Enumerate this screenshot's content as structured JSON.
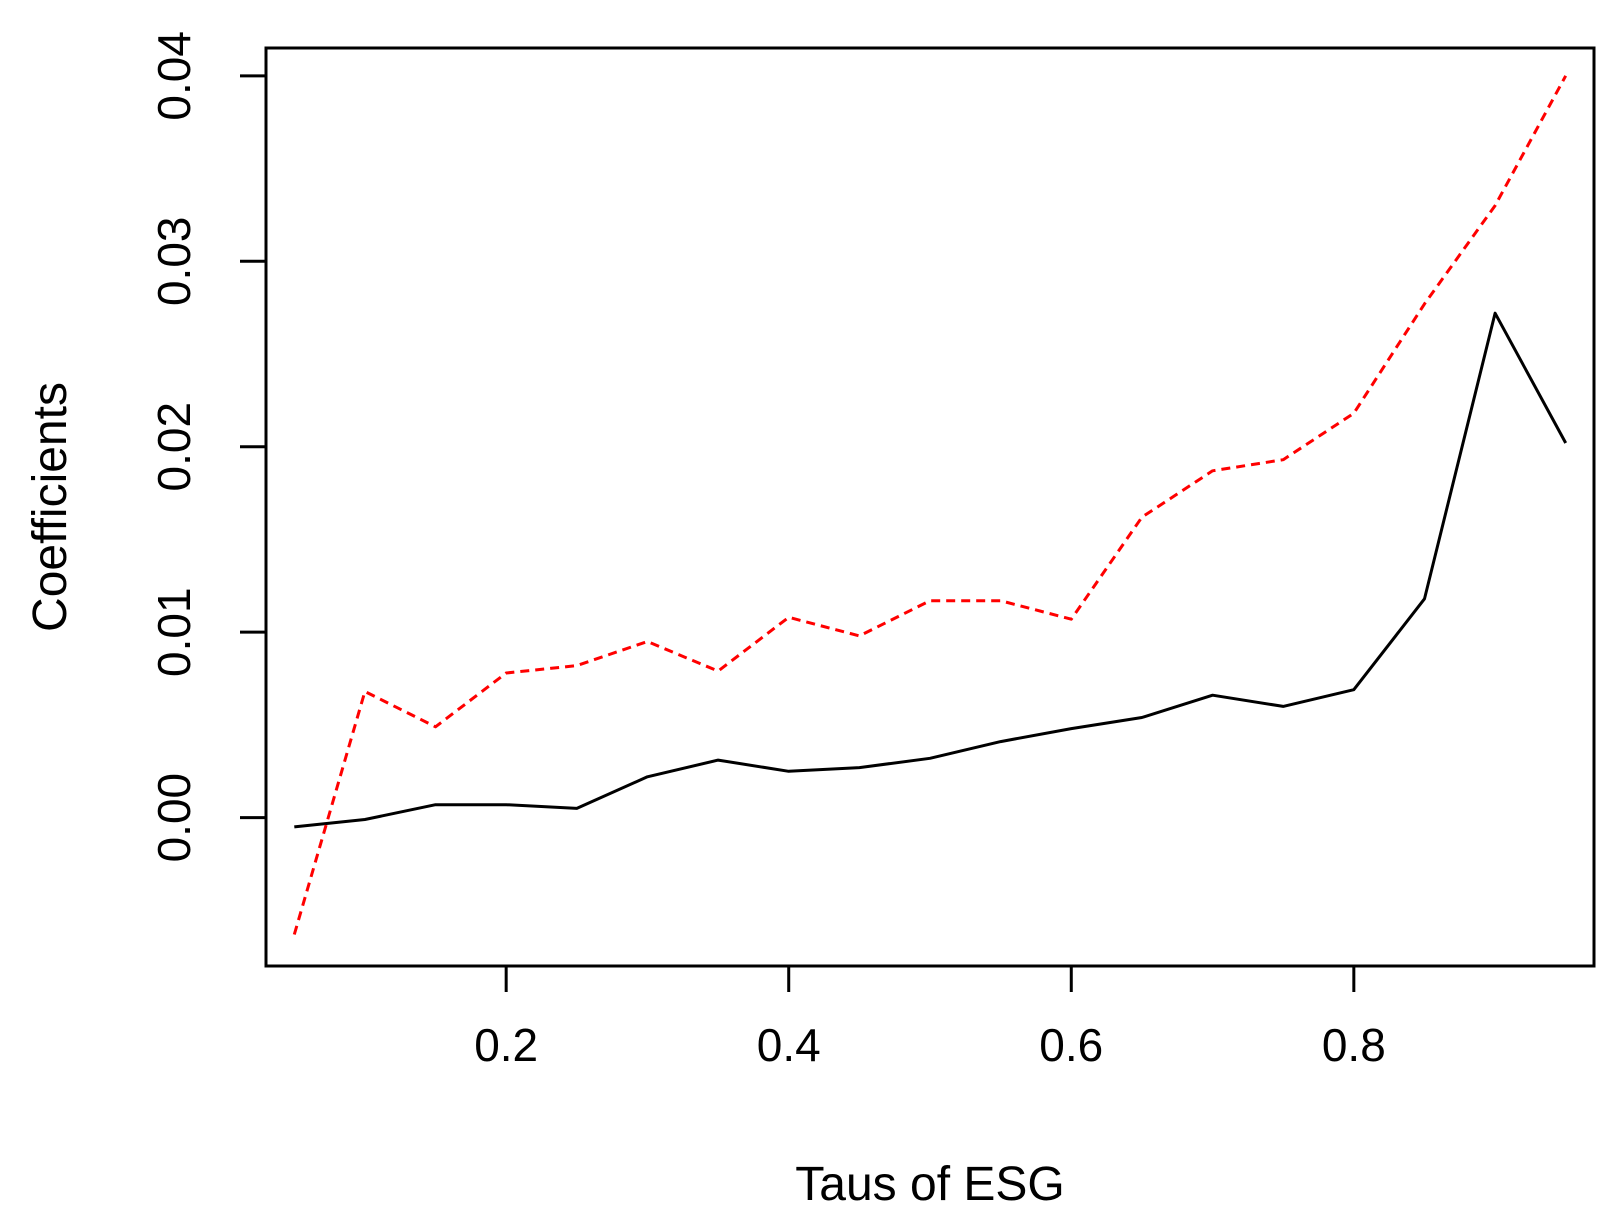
{
  "chart_data": {
    "type": "line",
    "title": "",
    "xlabel": "Taus of ESG",
    "ylabel": "Coefficients",
    "xlim": [
      0.03,
      0.97
    ],
    "ylim": [
      -0.008,
      0.0415
    ],
    "x_ticks": [
      0.2,
      0.4,
      0.6,
      0.8
    ],
    "x_tick_labels": [
      "0.2",
      "0.4",
      "0.6",
      "0.8"
    ],
    "y_ticks": [
      0.0,
      0.01,
      0.02,
      0.03,
      0.04
    ],
    "y_tick_labels": [
      "0.00",
      "0.01",
      "0.02",
      "0.03",
      "0.04"
    ],
    "grid": false,
    "legend": "none",
    "x": [
      0.05,
      0.1,
      0.15,
      0.2,
      0.25,
      0.3,
      0.35,
      0.4,
      0.45,
      0.5,
      0.55,
      0.6,
      0.65,
      0.7,
      0.75,
      0.8,
      0.85,
      0.9,
      0.95
    ],
    "series": [
      {
        "color": "#000000",
        "style": "solid",
        "values": [
          -0.0005,
          -0.0001,
          0.0007,
          0.0007,
          0.0005,
          0.0022,
          0.0031,
          0.0025,
          0.0027,
          0.0032,
          0.0041,
          0.0048,
          0.0054,
          0.0066,
          0.006,
          0.0069,
          0.0118,
          0.0272,
          0.0202
        ]
      },
      {
        "color": "#ff0000",
        "style": "dashed",
        "values": [
          -0.0063,
          0.0068,
          0.0049,
          0.0078,
          0.0082,
          0.0095,
          0.0079,
          0.0108,
          0.0098,
          0.0117,
          0.0117,
          0.0107,
          0.0162,
          0.0187,
          0.0193,
          0.0218,
          0.0277,
          0.033,
          0.04
        ]
      }
    ]
  }
}
